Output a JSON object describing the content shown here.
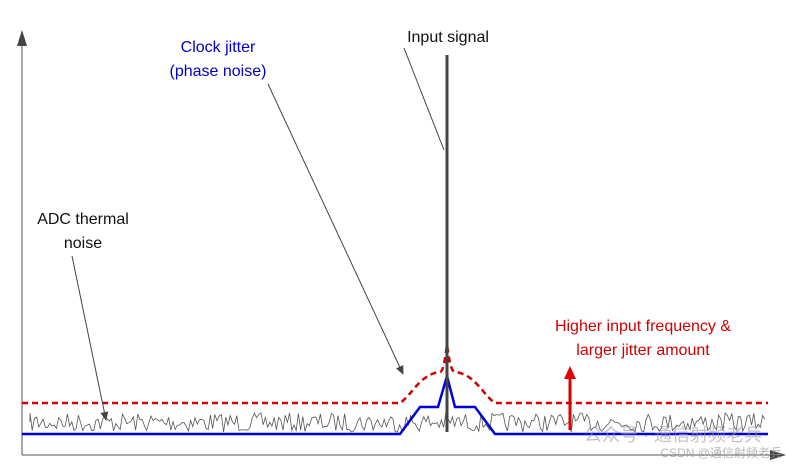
{
  "labels": {
    "input_signal": "Input signal",
    "clock_jitter": [
      "Clock jitter",
      "(phase noise)"
    ],
    "adc_noise": [
      "ADC thermal",
      "noise"
    ],
    "higher_freq": [
      "Higher input frequency &",
      "larger jitter amount"
    ]
  },
  "watermark": [
    "公众号 · 通信射频老兵",
    "CSDN @通信射频老兵"
  ]
}
